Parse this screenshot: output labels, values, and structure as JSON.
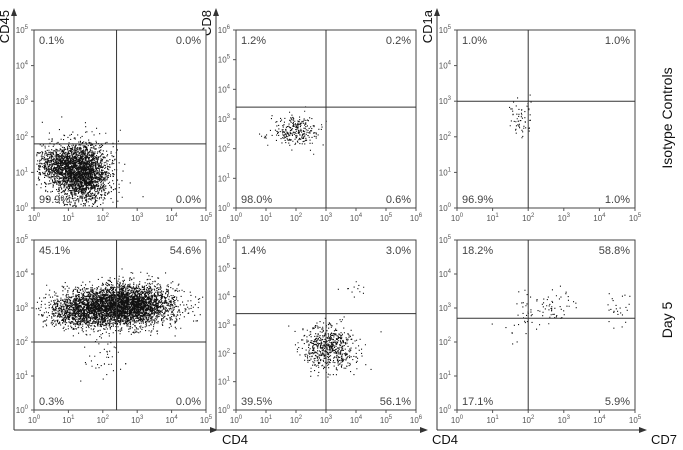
{
  "figure": {
    "row_labels": [
      "Isotype Controls",
      "Day 5"
    ],
    "column_axis_labels": [
      {
        "x": "CD4",
        "y": "CD45"
      },
      {
        "x": "CD4",
        "y": "CD8"
      },
      {
        "x": "CD7",
        "y": "CD1a"
      }
    ]
  },
  "chart_data": [
    {
      "type": "scatter",
      "row": 0,
      "col": 0,
      "xlabel": "",
      "ylabel": "CD45",
      "xlim": [
        0,
        5
      ],
      "ylim": [
        0,
        5
      ],
      "scale": "log",
      "tick_labels": [
        "10^0",
        "10^1",
        "10^2",
        "10^3",
        "10^4",
        "10^5"
      ],
      "gate": {
        "x": 2.4,
        "y": 1.8
      },
      "quadrants": {
        "UL": "0.1%",
        "UR": "0.0%",
        "LL": "99.9%",
        "LR": "0.0%"
      },
      "populations": [
        {
          "cx": 1.4,
          "cy": 1.0,
          "sx": 0.38,
          "sy": 0.42,
          "n": 2400,
          "seed": 11
        },
        {
          "cx": 0.7,
          "cy": 1.2,
          "sx": 0.35,
          "sy": 0.28,
          "n": 700,
          "seed": 12
        }
      ]
    },
    {
      "type": "scatter",
      "row": 0,
      "col": 1,
      "xlabel": "",
      "ylabel": "CD8",
      "xlim": [
        0,
        6
      ],
      "ylim": [
        0,
        6
      ],
      "scale": "log",
      "tick_labels": [
        "10^0",
        "10^1",
        "10^2",
        "10^3",
        "10^4",
        "10^5",
        "10^6"
      ],
      "show_x_ticks": true,
      "gate": {
        "x": 3.0,
        "y": 3.4
      },
      "quadrants": {
        "UL": "1.2%",
        "UR": "0.2%",
        "LL": "98.0%",
        "LR": "0.6%"
      },
      "populations": [
        {
          "cx": 2.0,
          "cy": 2.6,
          "sx": 0.4,
          "sy": 0.25,
          "n": 280,
          "seed": 21
        }
      ]
    },
    {
      "type": "scatter",
      "row": 0,
      "col": 2,
      "xlabel": "",
      "ylabel": "CD1a",
      "xlim": [
        0,
        5
      ],
      "ylim": [
        0,
        5
      ],
      "scale": "log",
      "tick_labels": [
        "10^0",
        "10^1",
        "10^2",
        "10^3",
        "10^4",
        "10^5"
      ],
      "gate": {
        "x": 2.0,
        "y": 3.0
      },
      "quadrants": {
        "UL": "1.0%",
        "UR": "1.0%",
        "LL": "96.9%",
        "LR": "1.0%"
      },
      "populations": [
        {
          "cx": 1.75,
          "cy": 2.5,
          "sx": 0.18,
          "sy": 0.28,
          "n": 60,
          "seed": 31
        }
      ]
    },
    {
      "type": "scatter",
      "row": 1,
      "col": 0,
      "xlabel": "CD4",
      "ylabel": "",
      "xlim": [
        0,
        5
      ],
      "ylim": [
        0,
        5
      ],
      "scale": "log",
      "tick_labels": [
        "10^0",
        "10^1",
        "10^2",
        "10^3",
        "10^4",
        "10^5"
      ],
      "gate": {
        "x": 2.4,
        "y": 2.0
      },
      "quadrants": {
        "UL": "45.1%",
        "UR": "54.6%",
        "LL": "0.3%",
        "LR": "0.0%"
      },
      "populations": [
        {
          "cx": 2.6,
          "cy": 3.1,
          "sx": 0.75,
          "sy": 0.3,
          "n": 3800,
          "seed": 41
        },
        {
          "cx": 1.3,
          "cy": 2.9,
          "sx": 0.55,
          "sy": 0.25,
          "n": 900,
          "seed": 42
        },
        {
          "cx": 1.9,
          "cy": 1.6,
          "sx": 0.35,
          "sy": 0.4,
          "n": 40,
          "seed": 43
        }
      ]
    },
    {
      "type": "scatter",
      "row": 1,
      "col": 1,
      "xlabel": "CD4",
      "ylabel": "",
      "xlim": [
        0,
        6
      ],
      "ylim": [
        0,
        6
      ],
      "scale": "log",
      "tick_labels": [
        "10^0",
        "10^1",
        "10^2",
        "10^3",
        "10^4",
        "10^5",
        "10^6"
      ],
      "show_x_ticks": true,
      "gate": {
        "x": 3.0,
        "y": 3.4
      },
      "quadrants": {
        "UL": "1.4%",
        "UR": "3.0%",
        "LL": "39.5%",
        "LR": "56.1%"
      },
      "populations": [
        {
          "cx": 3.1,
          "cy": 2.2,
          "sx": 0.45,
          "sy": 0.4,
          "n": 650,
          "seed": 51
        },
        {
          "cx": 3.9,
          "cy": 4.3,
          "sx": 0.2,
          "sy": 0.15,
          "n": 12,
          "seed": 52
        }
      ]
    },
    {
      "type": "scatter",
      "row": 1,
      "col": 2,
      "xlabel": "CD7",
      "ylabel": "",
      "xlim": [
        0,
        5
      ],
      "ylim": [
        0,
        5
      ],
      "scale": "log",
      "tick_labels": [
        "10^0",
        "10^1",
        "10^2",
        "10^3",
        "10^4",
        "10^5"
      ],
      "gate": {
        "x": 2.0,
        "y": 2.7
      },
      "quadrants": {
        "UL": "18.2%",
        "UR": "58.8%",
        "LL": "17.1%",
        "LR": "5.9%"
      },
      "populations": [
        {
          "cx": 2.5,
          "cy": 3.1,
          "sx": 0.45,
          "sy": 0.3,
          "n": 70,
          "seed": 61
        },
        {
          "cx": 4.5,
          "cy": 3.0,
          "sx": 0.15,
          "sy": 0.25,
          "n": 25,
          "seed": 62
        },
        {
          "cx": 1.6,
          "cy": 2.5,
          "sx": 0.3,
          "sy": 0.3,
          "n": 20,
          "seed": 63
        }
      ]
    }
  ]
}
